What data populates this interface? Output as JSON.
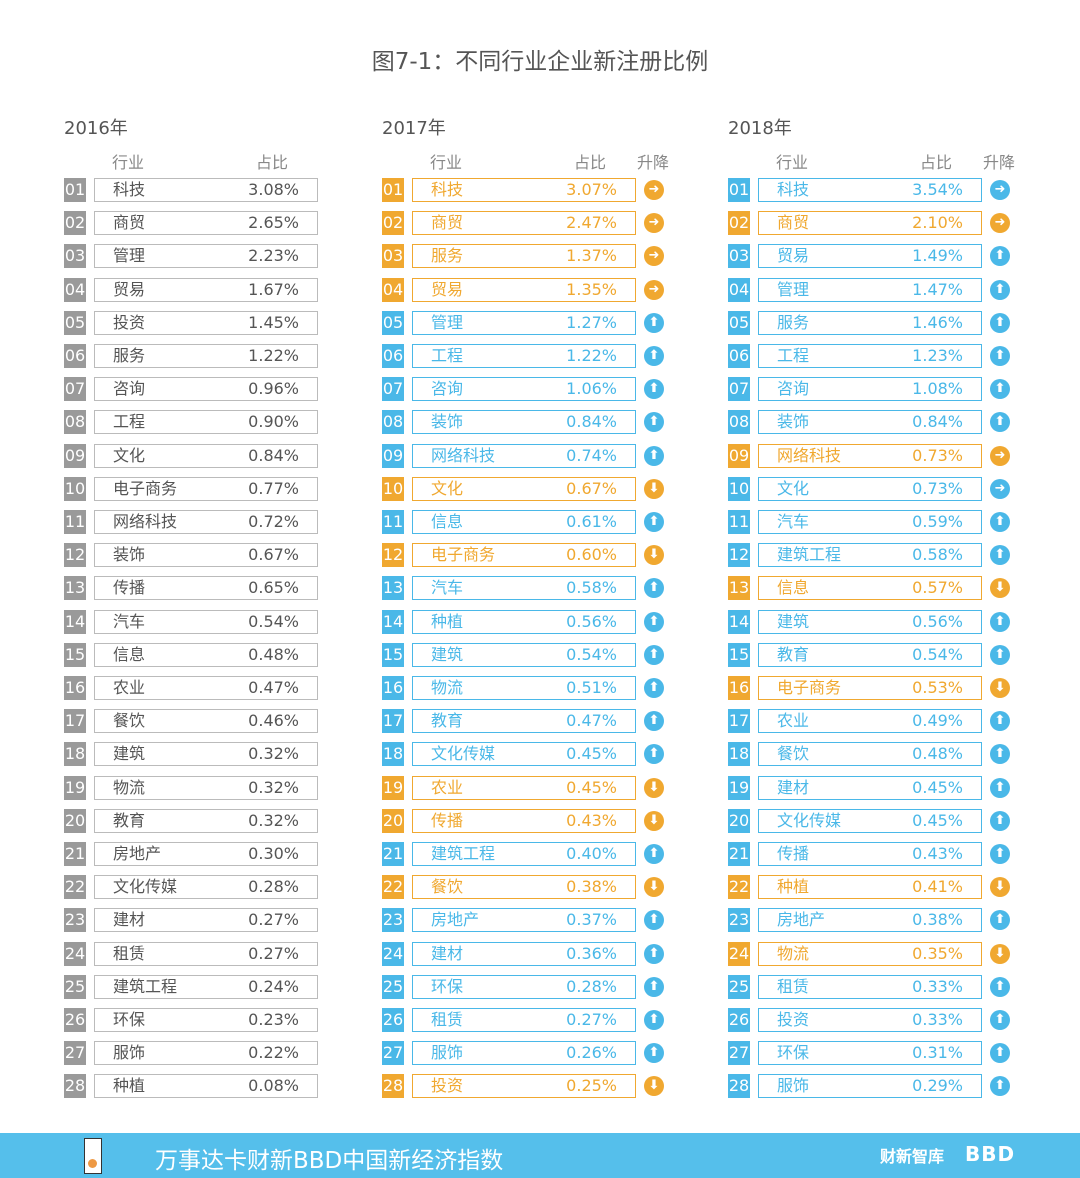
{
  "title": "图7-1：不同行业企业新注册比例",
  "headers": {
    "industry": "行业",
    "share": "占比",
    "change": "升降"
  },
  "colors": {
    "gray": "#9a9a9a",
    "orange": "#f0a830",
    "blue": "#4ab8e8"
  },
  "tables": [
    {
      "year": "2016年",
      "rows": [
        [
          "01",
          "科技",
          "3.08%"
        ],
        [
          "02",
          "商贸",
          "2.65%"
        ],
        [
          "03",
          "管理",
          "2.23%"
        ],
        [
          "04",
          "贸易",
          "1.67%"
        ],
        [
          "05",
          "投资",
          "1.45%"
        ],
        [
          "06",
          "服务",
          "1.22%"
        ],
        [
          "07",
          "咨询",
          "0.96%"
        ],
        [
          "08",
          "工程",
          "0.90%"
        ],
        [
          "09",
          "文化",
          "0.84%"
        ],
        [
          "10",
          "电子商务",
          "0.77%"
        ],
        [
          "11",
          "网络科技",
          "0.72%"
        ],
        [
          "12",
          "装饰",
          "0.67%"
        ],
        [
          "13",
          "传播",
          "0.65%"
        ],
        [
          "14",
          "汽车",
          "0.54%"
        ],
        [
          "15",
          "信息",
          "0.48%"
        ],
        [
          "16",
          "农业",
          "0.47%"
        ],
        [
          "17",
          "餐饮",
          "0.46%"
        ],
        [
          "18",
          "建筑",
          "0.32%"
        ],
        [
          "19",
          "物流",
          "0.32%"
        ],
        [
          "20",
          "教育",
          "0.32%"
        ],
        [
          "21",
          "房地产",
          "0.30%"
        ],
        [
          "22",
          "文化传媒",
          "0.28%"
        ],
        [
          "23",
          "建材",
          "0.27%"
        ],
        [
          "24",
          "租赁",
          "0.27%"
        ],
        [
          "25",
          "建筑工程",
          "0.24%"
        ],
        [
          "26",
          "环保",
          "0.23%"
        ],
        [
          "27",
          "服饰",
          "0.22%"
        ],
        [
          "28",
          "种植",
          "0.08%"
        ]
      ]
    },
    {
      "year": "2017年",
      "rows": [
        [
          "01",
          "科技",
          "3.07%",
          "o",
          "same"
        ],
        [
          "02",
          "商贸",
          "2.47%",
          "o",
          "same"
        ],
        [
          "03",
          "服务",
          "1.37%",
          "o",
          "same"
        ],
        [
          "04",
          "贸易",
          "1.35%",
          "o",
          "same"
        ],
        [
          "05",
          "管理",
          "1.27%",
          "b",
          "up"
        ],
        [
          "06",
          "工程",
          "1.22%",
          "b",
          "up"
        ],
        [
          "07",
          "咨询",
          "1.06%",
          "b",
          "up"
        ],
        [
          "08",
          "装饰",
          "0.84%",
          "b",
          "up"
        ],
        [
          "09",
          "网络科技",
          "0.74%",
          "b",
          "up"
        ],
        [
          "10",
          "文化",
          "0.67%",
          "o",
          "down"
        ],
        [
          "11",
          "信息",
          "0.61%",
          "b",
          "up"
        ],
        [
          "12",
          "电子商务",
          "0.60%",
          "o",
          "down"
        ],
        [
          "13",
          "汽车",
          "0.58%",
          "b",
          "up"
        ],
        [
          "14",
          "种植",
          "0.56%",
          "b",
          "up"
        ],
        [
          "15",
          "建筑",
          "0.54%",
          "b",
          "up"
        ],
        [
          "16",
          "物流",
          "0.51%",
          "b",
          "up"
        ],
        [
          "17",
          "教育",
          "0.47%",
          "b",
          "up"
        ],
        [
          "18",
          "文化传媒",
          "0.45%",
          "b",
          "up"
        ],
        [
          "19",
          "农业",
          "0.45%",
          "o",
          "down"
        ],
        [
          "20",
          "传播",
          "0.43%",
          "o",
          "down"
        ],
        [
          "21",
          "建筑工程",
          "0.40%",
          "b",
          "up"
        ],
        [
          "22",
          "餐饮",
          "0.38%",
          "o",
          "down"
        ],
        [
          "23",
          "房地产",
          "0.37%",
          "b",
          "up"
        ],
        [
          "24",
          "建材",
          "0.36%",
          "b",
          "up"
        ],
        [
          "25",
          "环保",
          "0.28%",
          "b",
          "up"
        ],
        [
          "26",
          "租赁",
          "0.27%",
          "b",
          "up"
        ],
        [
          "27",
          "服饰",
          "0.26%",
          "b",
          "up"
        ],
        [
          "28",
          "投资",
          "0.25%",
          "o",
          "down"
        ]
      ]
    },
    {
      "year": "2018年",
      "rows": [
        [
          "01",
          "科技",
          "3.54%",
          "b",
          "same"
        ],
        [
          "02",
          "商贸",
          "2.10%",
          "o",
          "same"
        ],
        [
          "03",
          "贸易",
          "1.49%",
          "b",
          "up"
        ],
        [
          "04",
          "管理",
          "1.47%",
          "b",
          "up"
        ],
        [
          "05",
          "服务",
          "1.46%",
          "b",
          "up"
        ],
        [
          "06",
          "工程",
          "1.23%",
          "b",
          "up"
        ],
        [
          "07",
          "咨询",
          "1.08%",
          "b",
          "up"
        ],
        [
          "08",
          "装饰",
          "0.84%",
          "b",
          "up"
        ],
        [
          "09",
          "网络科技",
          "0.73%",
          "o",
          "same"
        ],
        [
          "10",
          "文化",
          "0.73%",
          "b",
          "same"
        ],
        [
          "11",
          "汽车",
          "0.59%",
          "b",
          "up"
        ],
        [
          "12",
          "建筑工程",
          "0.58%",
          "b",
          "up"
        ],
        [
          "13",
          "信息",
          "0.57%",
          "o",
          "down"
        ],
        [
          "14",
          "建筑",
          "0.56%",
          "b",
          "up"
        ],
        [
          "15",
          "教育",
          "0.54%",
          "b",
          "up"
        ],
        [
          "16",
          "电子商务",
          "0.53%",
          "o",
          "down"
        ],
        [
          "17",
          "农业",
          "0.49%",
          "b",
          "up"
        ],
        [
          "18",
          "餐饮",
          "0.48%",
          "b",
          "up"
        ],
        [
          "19",
          "建材",
          "0.45%",
          "b",
          "up"
        ],
        [
          "20",
          "文化传媒",
          "0.45%",
          "b",
          "up"
        ],
        [
          "21",
          "传播",
          "0.43%",
          "b",
          "up"
        ],
        [
          "22",
          "种植",
          "0.41%",
          "o",
          "down"
        ],
        [
          "23",
          "房地产",
          "0.38%",
          "b",
          "up"
        ],
        [
          "24",
          "物流",
          "0.35%",
          "o",
          "down"
        ],
        [
          "25",
          "租赁",
          "0.33%",
          "b",
          "up"
        ],
        [
          "26",
          "投资",
          "0.33%",
          "b",
          "up"
        ],
        [
          "27",
          "环保",
          "0.31%",
          "b",
          "up"
        ],
        [
          "28",
          "服饰",
          "0.29%",
          "b",
          "up"
        ]
      ]
    }
  ],
  "footer": {
    "text": "万事达卡财新BBD中国新经济指数",
    "brand1": "财新智库",
    "brand2": "BBD"
  }
}
